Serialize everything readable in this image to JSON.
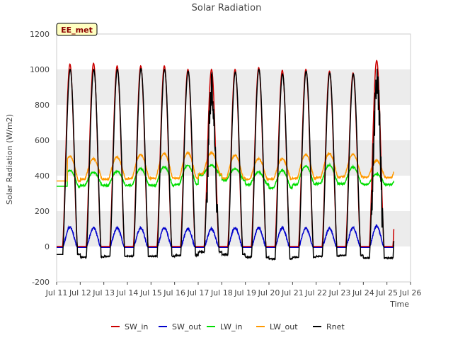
{
  "chart_data": {
    "type": "line",
    "title": "Solar Radiation",
    "xlabel": "Time",
    "ylabel": "Solar Radiation (W/m2)",
    "station_label": "EE_met",
    "ylim": [
      -200,
      1200
    ],
    "xlim": [
      11,
      26
    ],
    "x_unit_note": "day of July",
    "yticks": [
      -200,
      0,
      200,
      400,
      600,
      800,
      1000,
      1200
    ],
    "ytick_labels": [
      "-200",
      "0",
      "200",
      "400",
      "600",
      "800",
      "1000",
      "1200"
    ],
    "xticks": [
      11,
      12,
      13,
      14,
      15,
      16,
      17,
      18,
      19,
      20,
      21,
      22,
      23,
      24,
      25,
      26
    ],
    "xtick_labels": [
      "Jul 11",
      "Jul 12",
      "Jul 13",
      "Jul 14",
      "Jul 15",
      "Jul 16",
      "Jul 17",
      "Jul 18",
      "Jul 19",
      "Jul 20",
      "Jul 21",
      "Jul 22",
      "Jul 23",
      "Jul 24",
      "Jul 25",
      "Jul 26"
    ],
    "grid": "horizontal bands",
    "legend_placement": "bottom",
    "days": [
      11.6,
      12.6,
      13.6,
      14.6,
      15.6,
      16.6,
      17.6,
      18.6,
      19.6,
      20.6,
      21.6,
      22.6,
      23.6,
      24.6
    ],
    "series": [
      {
        "name": "SW_in",
        "color": "#cc0000",
        "night": 0,
        "peaks": [
          1030,
          1035,
          1020,
          1020,
          1020,
          1000,
          1000,
          1000,
          1010,
          995,
          1000,
          990,
          980,
          1050
        ]
      },
      {
        "name": "SW_out",
        "color": "#0000cc",
        "night": -5,
        "peaks": [
          110,
          105,
          105,
          105,
          105,
          100,
          100,
          105,
          105,
          105,
          105,
          100,
          105,
          115
        ]
      },
      {
        "name": "LW_in",
        "color": "#00dd00",
        "night": [
          340,
          345,
          345,
          345,
          345,
          350,
          405,
          375,
          350,
          330,
          350,
          355,
          355,
          350
        ],
        "peaks": [
          430,
          420,
          425,
          440,
          450,
          460,
          460,
          440,
          420,
          430,
          455,
          460,
          450,
          410
        ]
      },
      {
        "name": "LW_out",
        "color": "#ff9900",
        "night": [
          370,
          380,
          380,
          385,
          385,
          385,
          410,
          385,
          380,
          380,
          385,
          390,
          395,
          390
        ],
        "peaks": [
          510,
          495,
          505,
          520,
          525,
          530,
          530,
          515,
          495,
          495,
          520,
          525,
          520,
          485
        ]
      },
      {
        "name": "Rnet",
        "color": "#000000",
        "night": [
          -45,
          -60,
          -55,
          -55,
          -55,
          -50,
          -30,
          -45,
          -60,
          -70,
          -60,
          -55,
          -50,
          -65
        ],
        "peaks": [
          1000,
          1000,
          1000,
          1005,
          1000,
          990,
          995,
          985,
          1000,
          975,
          990,
          980,
          975,
          1010
        ]
      }
    ]
  }
}
